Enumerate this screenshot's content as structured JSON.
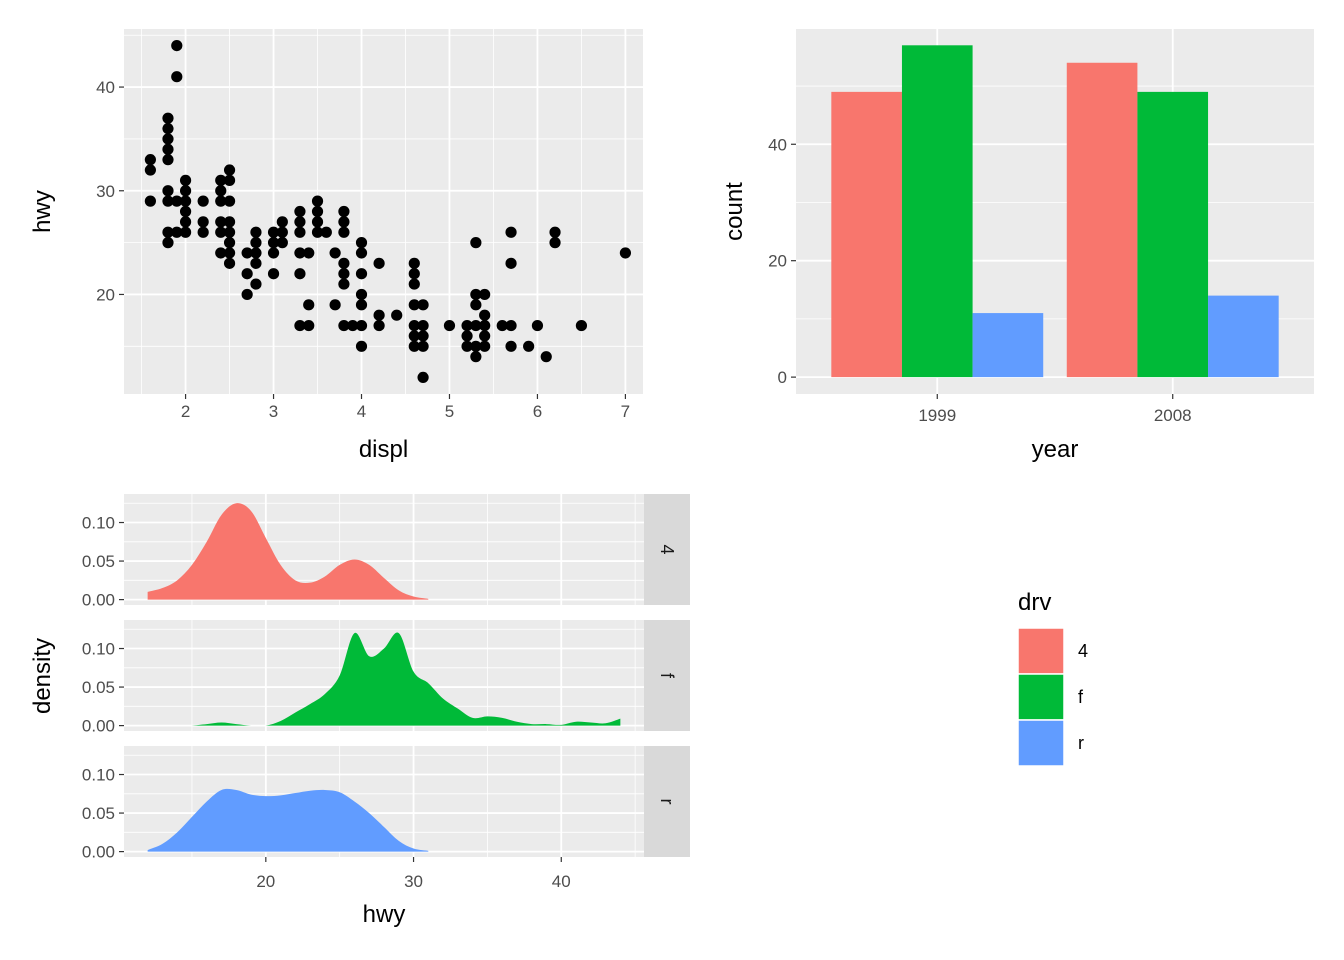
{
  "chart_data": [
    {
      "type": "scatter",
      "xlabel": "displ",
      "ylabel": "hwy",
      "xlim": [
        1.3,
        7.2
      ],
      "ylim": [
        10.4,
        45.6
      ],
      "xticks": [
        2,
        3,
        4,
        5,
        6,
        7
      ],
      "yticks": [
        20,
        30,
        40
      ],
      "grid": true,
      "point_color": "#000000",
      "points": [
        [
          1.6,
          33
        ],
        [
          1.6,
          32
        ],
        [
          1.6,
          29
        ],
        [
          1.8,
          37
        ],
        [
          1.8,
          36
        ],
        [
          1.8,
          35
        ],
        [
          1.8,
          34
        ],
        [
          1.8,
          33
        ],
        [
          1.8,
          30
        ],
        [
          1.8,
          29
        ],
        [
          1.8,
          26
        ],
        [
          1.8,
          25
        ],
        [
          1.9,
          44
        ],
        [
          1.9,
          41
        ],
        [
          1.9,
          29
        ],
        [
          1.9,
          26
        ],
        [
          2.0,
          31
        ],
        [
          2.0,
          30
        ],
        [
          2.0,
          29
        ],
        [
          2.0,
          28
        ],
        [
          2.0,
          27
        ],
        [
          2.0,
          26
        ],
        [
          2.2,
          29
        ],
        [
          2.2,
          27
        ],
        [
          2.2,
          26
        ],
        [
          2.4,
          31
        ],
        [
          2.4,
          30
        ],
        [
          2.4,
          29
        ],
        [
          2.4,
          27
        ],
        [
          2.4,
          26
        ],
        [
          2.4,
          24
        ],
        [
          2.5,
          32
        ],
        [
          2.5,
          31
        ],
        [
          2.5,
          29
        ],
        [
          2.5,
          27
        ],
        [
          2.5,
          26
        ],
        [
          2.5,
          25
        ],
        [
          2.5,
          24
        ],
        [
          2.5,
          23
        ],
        [
          2.7,
          24
        ],
        [
          2.7,
          22
        ],
        [
          2.7,
          20
        ],
        [
          2.8,
          26
        ],
        [
          2.8,
          25
        ],
        [
          2.8,
          24
        ],
        [
          2.8,
          23
        ],
        [
          2.8,
          21
        ],
        [
          3.0,
          26
        ],
        [
          3.0,
          25
        ],
        [
          3.0,
          24
        ],
        [
          3.0,
          22
        ],
        [
          3.1,
          27
        ],
        [
          3.1,
          26
        ],
        [
          3.1,
          25
        ],
        [
          3.3,
          28
        ],
        [
          3.3,
          27
        ],
        [
          3.3,
          26
        ],
        [
          3.3,
          24
        ],
        [
          3.3,
          22
        ],
        [
          3.3,
          17
        ],
        [
          3.4,
          24
        ],
        [
          3.4,
          19
        ],
        [
          3.4,
          17
        ],
        [
          3.5,
          29
        ],
        [
          3.5,
          28
        ],
        [
          3.5,
          27
        ],
        [
          3.5,
          26
        ],
        [
          3.6,
          26
        ],
        [
          3.7,
          24
        ],
        [
          3.7,
          19
        ],
        [
          3.8,
          28
        ],
        [
          3.8,
          27
        ],
        [
          3.8,
          26
        ],
        [
          3.8,
          23
        ],
        [
          3.8,
          22
        ],
        [
          3.8,
          21
        ],
        [
          3.8,
          17
        ],
        [
          3.9,
          17
        ],
        [
          4.0,
          25
        ],
        [
          4.0,
          24
        ],
        [
          4.0,
          22
        ],
        [
          4.0,
          20
        ],
        [
          4.0,
          19
        ],
        [
          4.0,
          17
        ],
        [
          4.0,
          15
        ],
        [
          4.2,
          23
        ],
        [
          4.2,
          18
        ],
        [
          4.2,
          17
        ],
        [
          4.4,
          18
        ],
        [
          4.6,
          23
        ],
        [
          4.6,
          22
        ],
        [
          4.6,
          21
        ],
        [
          4.6,
          19
        ],
        [
          4.6,
          17
        ],
        [
          4.6,
          16
        ],
        [
          4.6,
          15
        ],
        [
          4.7,
          19
        ],
        [
          4.7,
          17
        ],
        [
          4.7,
          16
        ],
        [
          4.7,
          15
        ],
        [
          4.7,
          12
        ],
        [
          5.0,
          17
        ],
        [
          5.2,
          17
        ],
        [
          5.2,
          16
        ],
        [
          5.2,
          15
        ],
        [
          5.3,
          25
        ],
        [
          5.3,
          20
        ],
        [
          5.3,
          19
        ],
        [
          5.3,
          17
        ],
        [
          5.3,
          15
        ],
        [
          5.3,
          14
        ],
        [
          5.4,
          20
        ],
        [
          5.4,
          18
        ],
        [
          5.4,
          17
        ],
        [
          5.4,
          16
        ],
        [
          5.4,
          15
        ],
        [
          5.6,
          17
        ],
        [
          5.7,
          26
        ],
        [
          5.7,
          23
        ],
        [
          5.7,
          17
        ],
        [
          5.7,
          15
        ],
        [
          5.9,
          15
        ],
        [
          6.0,
          17
        ],
        [
          6.1,
          14
        ],
        [
          6.2,
          26
        ],
        [
          6.2,
          25
        ],
        [
          6.5,
          17
        ],
        [
          7.0,
          24
        ]
      ]
    },
    {
      "type": "bar",
      "xlabel": "year",
      "ylabel": "count",
      "categories": [
        "1999",
        "2008"
      ],
      "series": [
        {
          "name": "4",
          "values": [
            49,
            54
          ]
        },
        {
          "name": "f",
          "values": [
            57,
            49
          ]
        },
        {
          "name": "r",
          "values": [
            11,
            14
          ]
        }
      ],
      "ylim": [
        -2.9,
        59.8
      ],
      "yticks": [
        0,
        20,
        40
      ],
      "grid": true
    },
    {
      "type": "area",
      "subtype": "density",
      "xlabel": "hwy",
      "ylabel": "density",
      "xlim": [
        10.4,
        45.6
      ],
      "ylim": [
        -0.007,
        0.137
      ],
      "xticks": [
        20,
        30,
        40
      ],
      "yticks": [
        0.0,
        0.05,
        0.1
      ],
      "ytick_labels": [
        "0.00",
        "0.05",
        "0.10"
      ],
      "grid": true,
      "facets": [
        {
          "name": "4",
          "x": [
            12,
            13,
            14,
            15,
            16,
            17,
            18,
            19,
            20,
            21,
            22,
            23,
            24,
            25,
            26,
            27,
            28,
            29,
            30,
            31
          ],
          "y": [
            0.01,
            0.015,
            0.025,
            0.045,
            0.075,
            0.11,
            0.125,
            0.115,
            0.08,
            0.045,
            0.025,
            0.022,
            0.03,
            0.045,
            0.052,
            0.045,
            0.028,
            0.012,
            0.004,
            0.001
          ]
        },
        {
          "name": "f",
          "x": [
            15,
            16,
            17,
            18,
            19,
            20,
            21,
            22,
            23,
            24,
            25,
            26,
            27,
            28,
            29,
            30,
            31,
            32,
            33,
            34,
            35,
            36,
            37,
            38,
            39,
            40,
            41,
            42,
            43,
            44
          ],
          "y": [
            0.0,
            0.002,
            0.004,
            0.002,
            0.0,
            0.0,
            0.006,
            0.017,
            0.028,
            0.041,
            0.065,
            0.12,
            0.09,
            0.1,
            0.12,
            0.07,
            0.055,
            0.035,
            0.022,
            0.01,
            0.012,
            0.01,
            0.005,
            0.002,
            0.002,
            0.001,
            0.005,
            0.004,
            0.003,
            0.009
          ]
        },
        {
          "name": "r",
          "x": [
            12,
            13,
            14,
            15,
            16,
            17,
            18,
            19,
            20,
            21,
            22,
            23,
            24,
            25,
            26,
            27,
            28,
            29,
            30,
            31
          ],
          "y": [
            0.002,
            0.01,
            0.025,
            0.045,
            0.065,
            0.08,
            0.08,
            0.074,
            0.072,
            0.073,
            0.076,
            0.079,
            0.08,
            0.077,
            0.065,
            0.05,
            0.032,
            0.014,
            0.004,
            0.001
          ]
        }
      ]
    }
  ],
  "legend": {
    "title": "drv",
    "items": [
      {
        "label": "4",
        "color": "#F8766D"
      },
      {
        "label": "f",
        "color": "#00BA38"
      },
      {
        "label": "r",
        "color": "#619CFF"
      }
    ]
  },
  "colors": {
    "panel_bg": "#EBEBEB",
    "grid": "#FFFFFF",
    "strip_bg": "#D9D9D9",
    "tick": "#333333"
  }
}
